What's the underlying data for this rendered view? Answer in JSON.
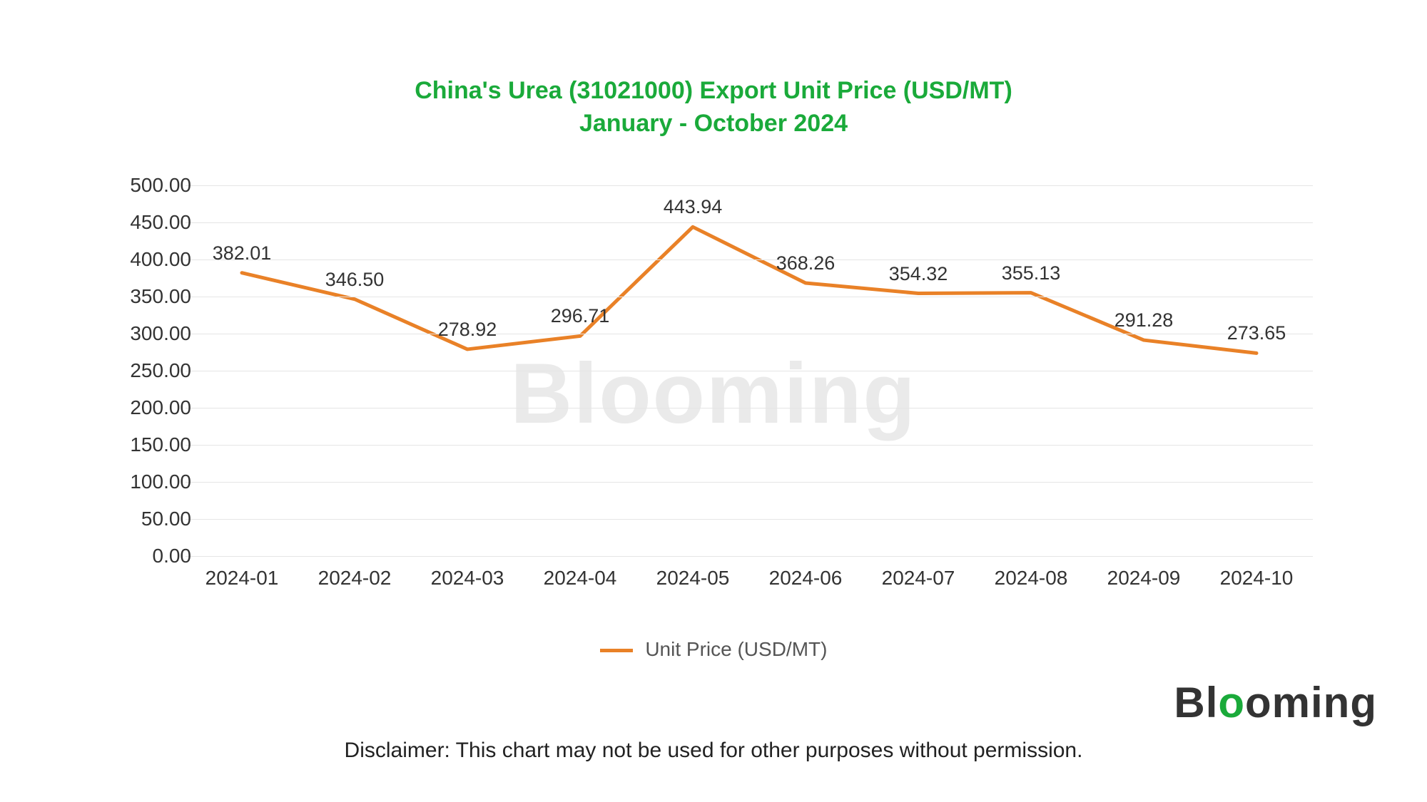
{
  "title": {
    "line1": "China's Urea (31021000) Export Unit Price (USD/MT)",
    "line2": "January - October 2024",
    "color": "#1aaa3a",
    "fontsize": 34
  },
  "chart": {
    "type": "line",
    "categories": [
      "2024-01",
      "2024-02",
      "2024-03",
      "2024-04",
      "2024-05",
      "2024-06",
      "2024-07",
      "2024-08",
      "2024-09",
      "2024-10"
    ],
    "values": [
      382.01,
      346.5,
      278.92,
      296.71,
      443.94,
      368.26,
      354.32,
      355.13,
      291.28,
      273.65
    ],
    "value_labels": [
      "382.01",
      "346.50",
      "278.92",
      "296.71",
      "443.94",
      "368.26",
      "354.32",
      "355.13",
      "291.28",
      "273.65"
    ],
    "line_color": "#e98127",
    "line_width": 5,
    "ylim": [
      0,
      500
    ],
    "ytick_step": 50,
    "ytick_labels": [
      "0.00",
      "50.00",
      "100.00",
      "150.00",
      "200.00",
      "250.00",
      "300.00",
      "350.00",
      "400.00",
      "450.00",
      "500.00"
    ],
    "grid_color": "#e5e5e5",
    "background_color": "#ffffff",
    "axis_label_fontsize": 28,
    "data_label_fontsize": 27,
    "data_label_color": "#333333",
    "axis_label_color": "#333333"
  },
  "legend": {
    "label": "Unit Price (USD/MT)",
    "color": "#e98127"
  },
  "watermark": {
    "text": "Blooming",
    "center_color": "#d9d9d9",
    "corner_color": "#333333"
  },
  "disclaimer": "Disclaimer: This chart may not be used for other purposes without permission."
}
